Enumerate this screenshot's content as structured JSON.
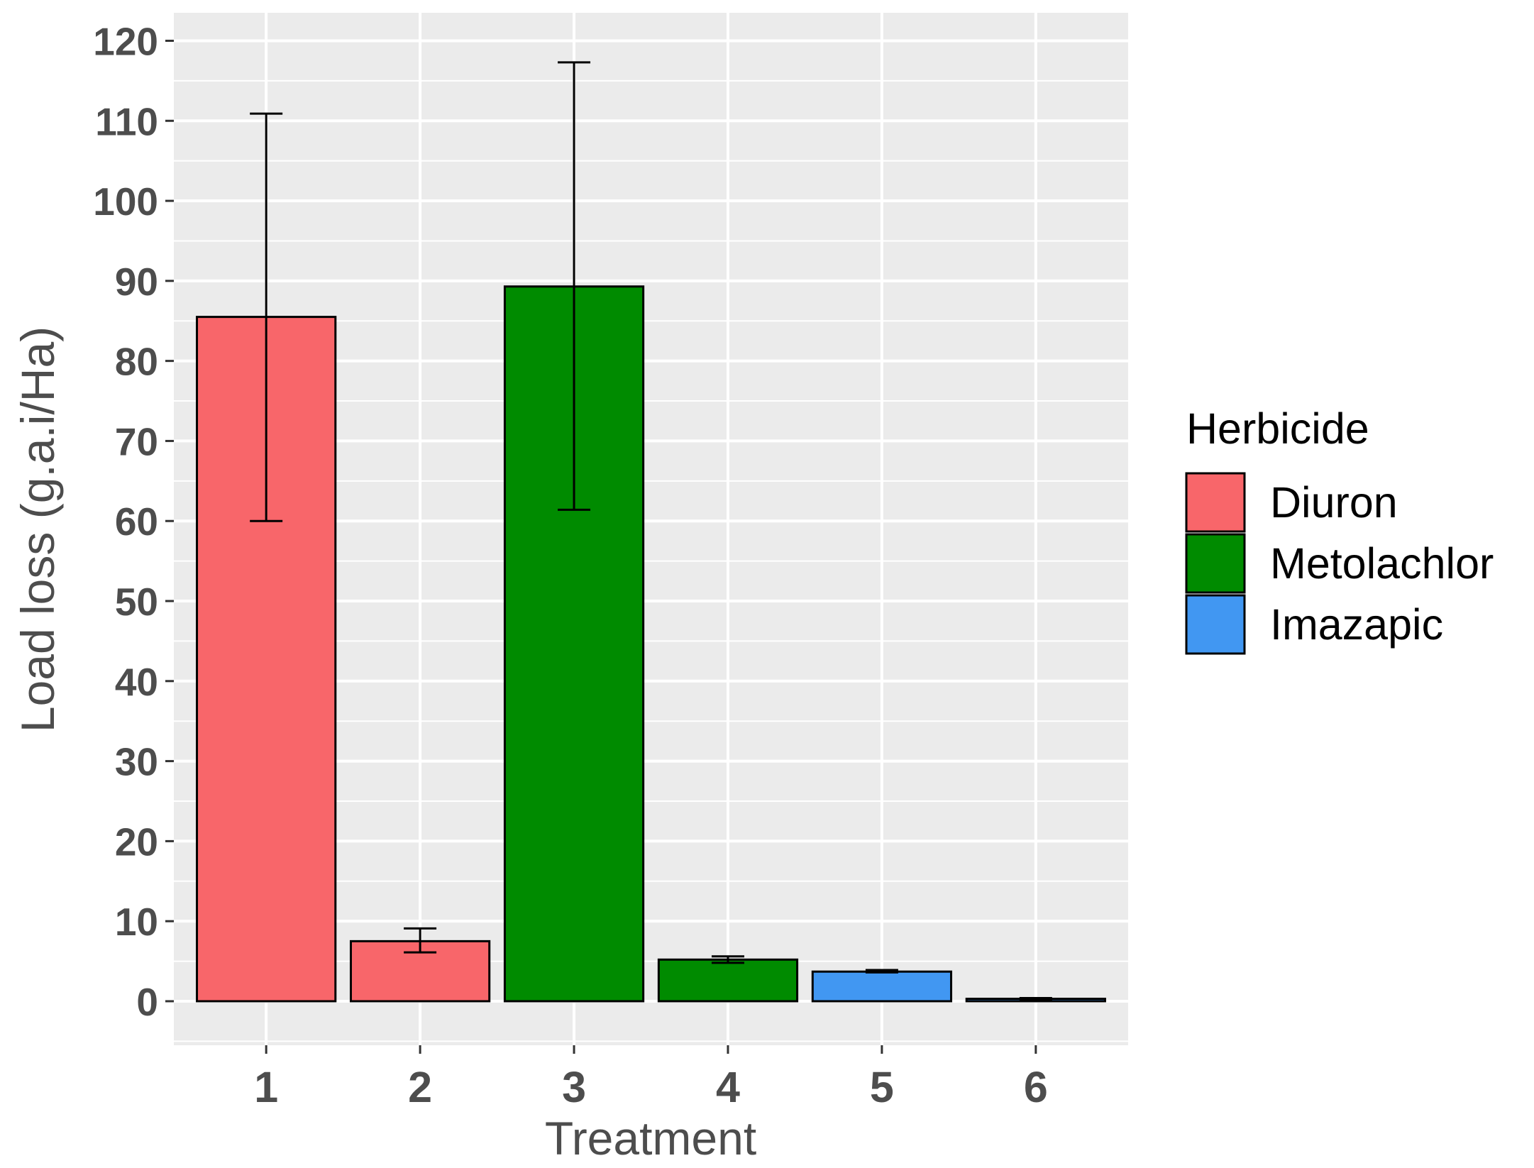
{
  "chart_data": {
    "type": "bar",
    "xlabel": "Treatment",
    "ylabel": "Load loss (g.a.i/Ha)",
    "categories": [
      "1",
      "2",
      "3",
      "4",
      "5",
      "6"
    ],
    "values": [
      85.5,
      7.5,
      89.3,
      5.2,
      3.7,
      0.3
    ],
    "error_low": [
      60.0,
      6.1,
      61.4,
      4.8,
      3.6,
      0.2
    ],
    "error_high": [
      110.9,
      9.1,
      117.3,
      5.6,
      3.9,
      0.4
    ],
    "herbicide": [
      "Diuron",
      "Diuron",
      "Metolachlor",
      "Metolachlor",
      "Imazapic",
      "Imazapic"
    ],
    "ylim": [
      -5.5,
      123.5
    ],
    "yticks": [
      0,
      10,
      20,
      30,
      40,
      50,
      60,
      70,
      80,
      90,
      100,
      110,
      120
    ],
    "grid": true,
    "legend": {
      "title": "Herbicide",
      "placement": "right",
      "entries": [
        {
          "name": "Diuron",
          "color": "#f8666a"
        },
        {
          "name": "Metolachlor",
          "color": "#008b00"
        },
        {
          "name": "Imazapic",
          "color": "#4197f2"
        }
      ]
    },
    "panel_background": "#ebebeb"
  }
}
